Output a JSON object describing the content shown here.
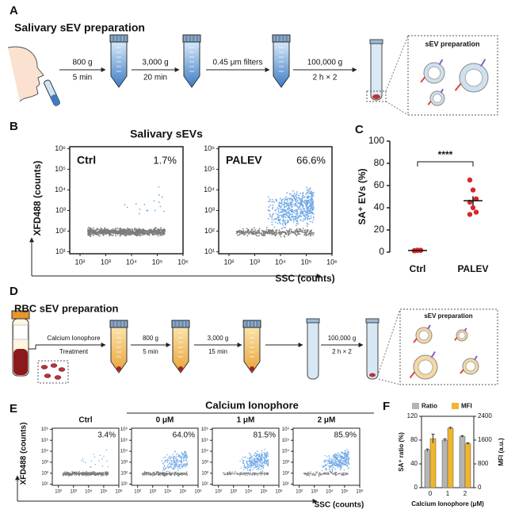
{
  "A": {
    "label": "A",
    "title": "Salivary sEV preparation",
    "steps": [
      {
        "line1": "800 g",
        "line2": "5 min"
      },
      {
        "line1": "3,000 g",
        "line2": "20 min"
      },
      {
        "line1": "0.45 μm filters"
      },
      {
        "line1": "100,000 g",
        "line2": "2 h × 2"
      }
    ],
    "inset": "sEV preparation"
  },
  "B": {
    "label": "B",
    "title": "Salivary sEVs",
    "ylabel": "XFD488 (counts)",
    "xlabel": "SSC (counts)",
    "xlim": [
      1.6,
      6
    ],
    "ylim": [
      0.9,
      6.1
    ],
    "xticks": [
      {
        "value": 2,
        "label": "10²"
      },
      {
        "value": 3,
        "label": "10³"
      },
      {
        "value": 4,
        "label": "10⁴"
      },
      {
        "value": 5,
        "label": "10⁵"
      },
      {
        "value": 6,
        "label": "10⁶"
      }
    ],
    "yticks": [
      {
        "value": 1,
        "label": "10¹"
      },
      {
        "value": 2,
        "label": "10²"
      },
      {
        "value": 3,
        "label": "10³"
      },
      {
        "value": 4,
        "label": "10⁴"
      },
      {
        "value": 5,
        "label": "10⁵"
      },
      {
        "value": 6,
        "label": "10⁶"
      }
    ],
    "plots": [
      {
        "name": "Ctrl",
        "percent": "1.7%"
      },
      {
        "name": "PALEV",
        "percent": "66.6%"
      }
    ]
  },
  "C": {
    "label": "C",
    "type": "dot",
    "ylabel": "SA⁺ EVs (%)",
    "ylim": [
      0,
      100
    ],
    "yticks": [
      0,
      20,
      40,
      60,
      80,
      100
    ],
    "categories": [
      "Ctrl",
      "PALEV"
    ],
    "color": "#d62728",
    "groups": [
      [
        1.2,
        1.5,
        1.7,
        1.4,
        1.8,
        1.6
      ],
      [
        65,
        56,
        48,
        45,
        40,
        36,
        34
      ]
    ],
    "mean": [
      1.5,
      46.3
    ],
    "error": [
      0.2,
      4.1
    ],
    "significance": "****"
  },
  "D": {
    "label": "D",
    "title": "RBC sEV preparation",
    "steps": [
      {
        "line1": "Calcium Ionophore",
        "line2": "Treatment"
      },
      {
        "line1": "800 g",
        "line2": "5 min"
      },
      {
        "line1": "3,000 g",
        "line2": "15 min"
      },
      {
        "line1": "100,000 g",
        "line2": "2 h × 2"
      }
    ],
    "inset": "sEV preparation"
  },
  "E": {
    "label": "E",
    "group_title": "Calcium Ionophore",
    "ylabel": "XFD488 (counts)",
    "xlabel": "SSC (counts)",
    "xlim": [
      1.6,
      6
    ],
    "ylim": [
      0.9,
      6.1
    ],
    "xticks": [
      {
        "value": 2,
        "label": "10²"
      },
      {
        "value": 3,
        "label": "10³"
      },
      {
        "value": 4,
        "label": "10⁴"
      },
      {
        "value": 5,
        "label": "10⁵"
      },
      {
        "value": 6,
        "label": "10⁶"
      }
    ],
    "yticks": [
      {
        "value": 1,
        "label": "10¹"
      },
      {
        "value": 2,
        "label": "10²"
      },
      {
        "value": 3,
        "label": "10³"
      },
      {
        "value": 4,
        "label": "10⁴"
      },
      {
        "value": 5,
        "label": "10⁵"
      },
      {
        "value": 6,
        "label": "10⁶"
      }
    ],
    "plots": [
      {
        "name": "Ctrl",
        "percent": "3.4%"
      },
      {
        "name": "0 μM",
        "percent": "64.0%"
      },
      {
        "name": "1 μM",
        "percent": "81.5%"
      },
      {
        "name": "2 μM",
        "percent": "85.9%"
      }
    ]
  },
  "F": {
    "label": "F",
    "type": "bar",
    "categories": [
      "0",
      "1",
      "2"
    ],
    "xlabel": "Calcium Ionophore (μM)",
    "ylabel": "SA⁺ ratio (%)",
    "y2label": "MFI (a.u.)",
    "ylim": [
      0,
      120
    ],
    "yticks": [
      0,
      40,
      80,
      120
    ],
    "y2lim": [
      0,
      2400
    ],
    "y2ticks": [
      0,
      800,
      1600,
      2400
    ],
    "series": [
      {
        "name": "Ratio",
        "color": "#b5b5b5",
        "values": [
          63,
          80,
          86
        ],
        "errors": [
          2,
          2,
          1.5
        ]
      },
      {
        "name": "MFI",
        "color": "#f2b52b",
        "axis": "y2",
        "values": [
          1650,
          2000,
          1480
        ],
        "errors": [
          150,
          30,
          30
        ]
      }
    ]
  }
}
